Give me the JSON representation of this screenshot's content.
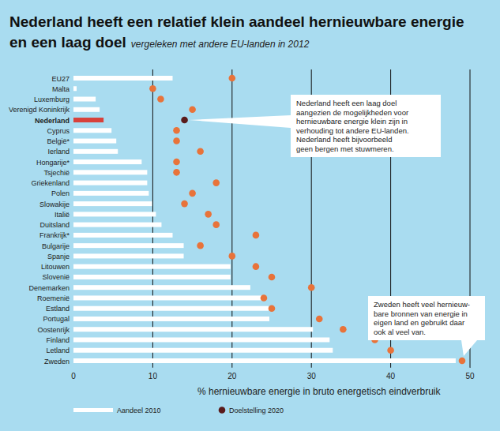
{
  "chart_data": {
    "type": "bar",
    "orientation": "horizontal",
    "title": [
      "Nederland heeft een relatief klein aandeel hernieuwbare energie",
      "en een laag doel"
    ],
    "subtitle": "vergeleken met andere EU-landen in 2012",
    "x_label": "% hernieuwbare energie in bruto energetisch eindverbruik",
    "categories": [
      "EU27",
      "Malta",
      "Luxemburg",
      "Verenigd Koninkrijk",
      "Nederland",
      "Cyprus",
      "België*",
      "Ierland",
      "Hongarije*",
      "Tsjechië",
      "Griekenland",
      "Polen",
      "Slowakije",
      "Italië",
      "Duitsland",
      "Frankrijk*",
      "Bulgarije",
      "Spanje",
      "Litouwen",
      "Slovenië",
      "Denemarken",
      "Roemenië",
      "Estland",
      "Portugal",
      "Oostenrijk",
      "Finland",
      "Letland",
      "Zweden"
    ],
    "series": [
      {
        "name": "Aandeel 2010",
        "type": "bar",
        "color": "#ffffff",
        "colors": [
          "#ffffff",
          "#ffffff",
          "#ffffff",
          "#ffffff",
          "#d8413a",
          "#ffffff",
          "#ffffff",
          "#ffffff",
          "#ffffff",
          "#ffffff",
          "#ffffff",
          "#ffffff",
          "#ffffff",
          "#ffffff",
          "#ffffff",
          "#ffffff",
          "#ffffff",
          "#ffffff",
          "#ffffff",
          "#ffffff",
          "#ffffff",
          "#ffffff",
          "#ffffff",
          "#ffffff",
          "#ffffff",
          "#ffffff",
          "#ffffff",
          "#ffffff"
        ],
        "values": [
          12.5,
          0.4,
          2.8,
          3.3,
          3.8,
          4.8,
          5.4,
          5.6,
          8.6,
          9.3,
          9.3,
          9.5,
          9.9,
          10.4,
          11.1,
          12.5,
          13.9,
          13.9,
          19.8,
          19.8,
          22.3,
          24.2,
          24.6,
          24.7,
          30.2,
          32.3,
          32.7,
          48.2
        ]
      },
      {
        "name": "Doelstelling 2020",
        "type": "scatter",
        "marker": "circle",
        "color": "#5a1b1b",
        "colors": [
          "#e8733a",
          "#e8733a",
          "#e8733a",
          "#e8733a",
          "#5a1b1b",
          "#e8733a",
          "#e8733a",
          "#e8733a",
          "#e8733a",
          "#e8733a",
          "#e8733a",
          "#e8733a",
          "#e8733a",
          "#e8733a",
          "#e8733a",
          "#e8733a",
          "#e8733a",
          "#e8733a",
          "#e8733a",
          "#e8733a",
          "#e8733a",
          "#e8733a",
          "#e8733a",
          "#e8733a",
          "#e8733a",
          "#e8733a",
          "#e8733a",
          "#e8733a"
        ],
        "values": [
          20,
          10,
          11,
          15,
          14,
          13,
          13,
          16,
          13,
          13,
          18,
          15,
          14,
          17,
          18,
          23,
          16,
          20,
          23,
          25,
          30,
          24,
          25,
          31,
          34,
          38,
          40,
          49
        ]
      }
    ],
    "xlim": [
      0,
      50
    ],
    "xticks": [
      0,
      10,
      20,
      30,
      40,
      50
    ],
    "grid": true,
    "legend": "bottom",
    "annotations": [
      {
        "lines": [
          "Nederland heeft een laag doel",
          "aangezien de mogelijkheden voor",
          "hernieuwbare energie klein zijn in",
          "verhouding tot andere EU-landen.",
          "Nederland heeft bijvoorbeeld",
          "geen bergen met stuwmeren."
        ]
      },
      {
        "lines": [
          "Zweden heeft veel hernieuw-",
          "bare bronnen van energie in",
          "eigen land en gebruikt daar",
          "ook al veel van."
        ]
      }
    ]
  }
}
